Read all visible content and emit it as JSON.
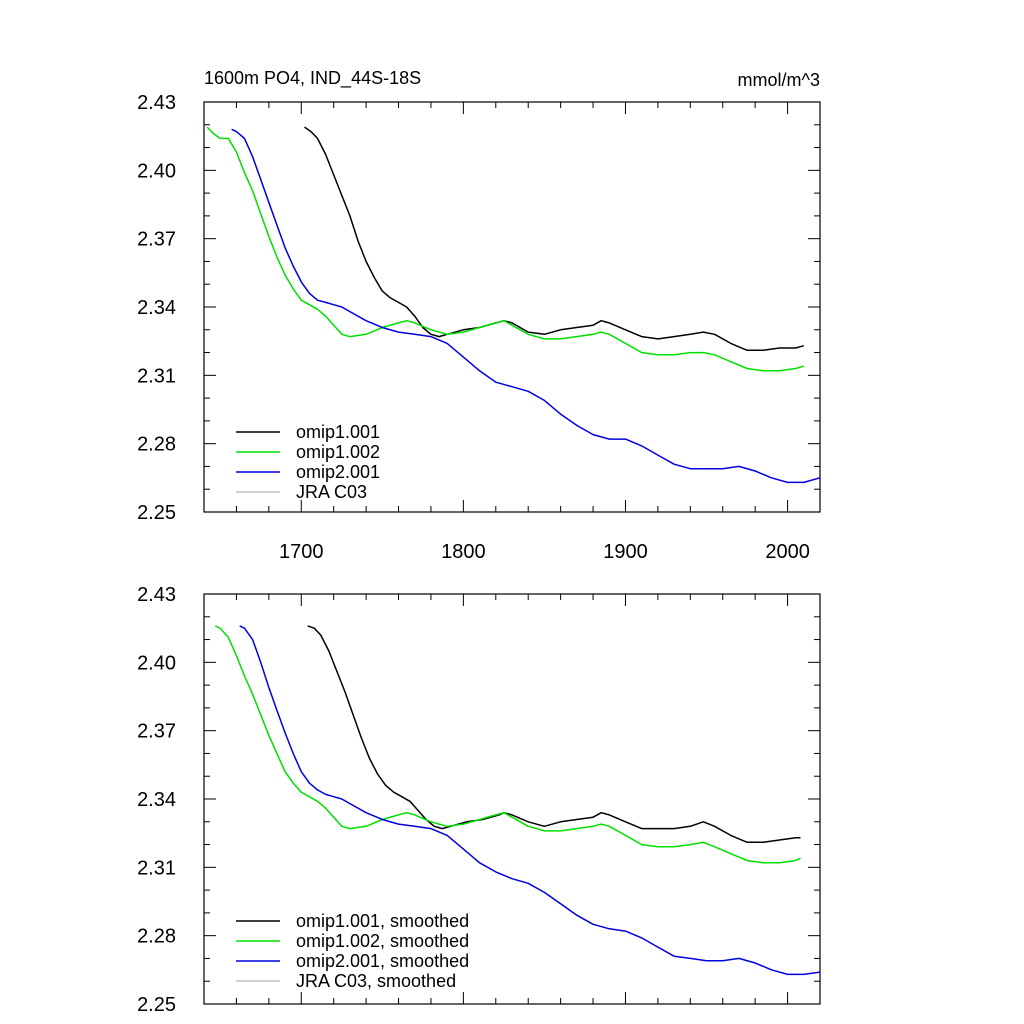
{
  "chart_data": [
    {
      "type": "line",
      "title": "1600m PO4, IND_44S-18S",
      "units": "mmol/m^3",
      "xlim": [
        1640,
        2020
      ],
      "ylim": [
        2.25,
        2.43
      ],
      "x_ticks": [
        "1700",
        "1800",
        "1900",
        "2000"
      ],
      "y_ticks": [
        "2.25",
        "2.28",
        "2.31",
        "2.34",
        "2.37",
        "2.40",
        "2.43"
      ],
      "legend_position": "bottom-left",
      "series": [
        {
          "name": "omip1.001",
          "color": "#000000",
          "x": [
            1702,
            1706,
            1710,
            1715,
            1720,
            1725,
            1730,
            1735,
            1740,
            1745,
            1750,
            1755,
            1760,
            1765,
            1770,
            1775,
            1780,
            1785,
            1790,
            1800,
            1810,
            1820,
            1825,
            1830,
            1840,
            1850,
            1860,
            1870,
            1880,
            1885,
            1890,
            1900,
            1910,
            1920,
            1930,
            1940,
            1948,
            1955,
            1965,
            1975,
            1985,
            1995,
            2005,
            2010
          ],
          "y": [
            2.419,
            2.417,
            2.414,
            2.407,
            2.398,
            2.389,
            2.38,
            2.369,
            2.36,
            2.353,
            2.347,
            2.344,
            2.342,
            2.34,
            2.336,
            2.331,
            2.328,
            2.327,
            2.328,
            2.33,
            2.331,
            2.333,
            2.334,
            2.333,
            2.329,
            2.328,
            2.33,
            2.331,
            2.332,
            2.334,
            2.333,
            2.33,
            2.327,
            2.326,
            2.327,
            2.328,
            2.329,
            2.328,
            2.324,
            2.321,
            2.321,
            2.322,
            2.322,
            2.323
          ]
        },
        {
          "name": "omip1.002",
          "color": "#00e000",
          "x": [
            1642,
            1646,
            1650,
            1655,
            1660,
            1665,
            1670,
            1675,
            1680,
            1685,
            1690,
            1695,
            1700,
            1705,
            1710,
            1715,
            1720,
            1725,
            1730,
            1740,
            1750,
            1760,
            1765,
            1770,
            1780,
            1790,
            1800,
            1810,
            1820,
            1825,
            1830,
            1840,
            1850,
            1860,
            1870,
            1880,
            1885,
            1890,
            1900,
            1910,
            1920,
            1930,
            1940,
            1948,
            1955,
            1965,
            1975,
            1985,
            1995,
            2005,
            2010
          ],
          "y": [
            2.419,
            2.416,
            2.414,
            2.414,
            2.408,
            2.399,
            2.391,
            2.381,
            2.371,
            2.362,
            2.354,
            2.348,
            2.343,
            2.341,
            2.339,
            2.336,
            2.332,
            2.328,
            2.327,
            2.328,
            2.331,
            2.333,
            2.334,
            2.333,
            2.33,
            2.328,
            2.329,
            2.331,
            2.333,
            2.334,
            2.332,
            2.328,
            2.326,
            2.326,
            2.327,
            2.328,
            2.329,
            2.328,
            2.324,
            2.32,
            2.319,
            2.319,
            2.32,
            2.32,
            2.319,
            2.316,
            2.313,
            2.312,
            2.312,
            2.313,
            2.314
          ]
        },
        {
          "name": "omip2.001",
          "color": "#0000e0",
          "x": [
            1657,
            1660,
            1665,
            1670,
            1675,
            1680,
            1685,
            1690,
            1695,
            1700,
            1705,
            1710,
            1715,
            1720,
            1725,
            1730,
            1740,
            1750,
            1760,
            1770,
            1780,
            1790,
            1800,
            1810,
            1820,
            1830,
            1840,
            1850,
            1860,
            1870,
            1880,
            1890,
            1900,
            1910,
            1920,
            1930,
            1940,
            1950,
            1960,
            1970,
            1980,
            1990,
            2000,
            2010,
            2020
          ],
          "y": [
            2.418,
            2.417,
            2.414,
            2.406,
            2.396,
            2.386,
            2.376,
            2.366,
            2.358,
            2.351,
            2.346,
            2.343,
            2.342,
            2.341,
            2.34,
            2.338,
            2.334,
            2.331,
            2.329,
            2.328,
            2.327,
            2.324,
            2.318,
            2.312,
            2.307,
            2.305,
            2.303,
            2.299,
            2.293,
            2.288,
            2.284,
            2.282,
            2.282,
            2.279,
            2.275,
            2.271,
            2.269,
            2.269,
            2.269,
            2.27,
            2.268,
            2.265,
            2.263,
            2.263,
            2.265
          ]
        },
        {
          "name": "JRA C03",
          "color": "#c0c0c0",
          "x": [],
          "y": []
        }
      ]
    },
    {
      "type": "line",
      "xlim": [
        1640,
        2020
      ],
      "ylim": [
        2.25,
        2.43
      ],
      "y_ticks": [
        "2.25",
        "2.28",
        "2.31",
        "2.34",
        "2.37",
        "2.40",
        "2.43"
      ],
      "legend_position": "bottom-left",
      "series": [
        {
          "name": "omip1.001, smoothed",
          "color": "#000000",
          "x": [
            1704,
            1708,
            1712,
            1717,
            1722,
            1727,
            1732,
            1737,
            1742,
            1747,
            1752,
            1757,
            1762,
            1767,
            1772,
            1777,
            1782,
            1787,
            1792,
            1802,
            1812,
            1822,
            1825,
            1830,
            1840,
            1850,
            1860,
            1870,
            1880,
            1885,
            1890,
            1900,
            1910,
            1920,
            1930,
            1940,
            1948,
            1955,
            1965,
            1975,
            1985,
            1995,
            2005,
            2008
          ],
          "y": [
            2.416,
            2.415,
            2.412,
            2.405,
            2.396,
            2.387,
            2.377,
            2.367,
            2.358,
            2.351,
            2.346,
            2.343,
            2.341,
            2.339,
            2.335,
            2.331,
            2.328,
            2.327,
            2.328,
            2.33,
            2.331,
            2.333,
            2.334,
            2.333,
            2.33,
            2.328,
            2.33,
            2.331,
            2.332,
            2.334,
            2.333,
            2.33,
            2.327,
            2.327,
            2.327,
            2.328,
            2.33,
            2.328,
            2.324,
            2.321,
            2.321,
            2.322,
            2.323,
            2.323
          ]
        },
        {
          "name": "omip1.002, smoothed",
          "color": "#00e000",
          "x": [
            1647,
            1650,
            1655,
            1660,
            1665,
            1670,
            1675,
            1680,
            1685,
            1690,
            1695,
            1700,
            1705,
            1710,
            1715,
            1720,
            1725,
            1730,
            1740,
            1750,
            1760,
            1765,
            1770,
            1780,
            1790,
            1800,
            1810,
            1820,
            1825,
            1830,
            1840,
            1850,
            1860,
            1870,
            1880,
            1885,
            1890,
            1900,
            1910,
            1920,
            1930,
            1940,
            1948,
            1955,
            1965,
            1975,
            1985,
            1995,
            2005,
            2008
          ],
          "y": [
            2.416,
            2.415,
            2.411,
            2.403,
            2.394,
            2.386,
            2.377,
            2.368,
            2.36,
            2.352,
            2.347,
            2.343,
            2.341,
            2.339,
            2.336,
            2.332,
            2.328,
            2.327,
            2.328,
            2.331,
            2.333,
            2.334,
            2.333,
            2.33,
            2.328,
            2.329,
            2.331,
            2.333,
            2.334,
            2.332,
            2.328,
            2.326,
            2.326,
            2.327,
            2.328,
            2.329,
            2.328,
            2.324,
            2.32,
            2.319,
            2.319,
            2.32,
            2.321,
            2.319,
            2.316,
            2.313,
            2.312,
            2.312,
            2.313,
            2.314
          ]
        },
        {
          "name": "omip2.001, smoothed",
          "color": "#0000e0",
          "x": [
            1662,
            1665,
            1670,
            1675,
            1680,
            1685,
            1690,
            1695,
            1700,
            1705,
            1710,
            1715,
            1720,
            1725,
            1730,
            1740,
            1750,
            1760,
            1770,
            1780,
            1790,
            1800,
            1810,
            1820,
            1830,
            1840,
            1850,
            1860,
            1870,
            1880,
            1890,
            1900,
            1910,
            1920,
            1930,
            1940,
            1950,
            1960,
            1970,
            1980,
            1990,
            2000,
            2010,
            2020
          ],
          "y": [
            2.416,
            2.415,
            2.41,
            2.4,
            2.389,
            2.379,
            2.369,
            2.36,
            2.352,
            2.347,
            2.344,
            2.342,
            2.341,
            2.34,
            2.338,
            2.334,
            2.331,
            2.329,
            2.328,
            2.327,
            2.324,
            2.318,
            2.312,
            2.308,
            2.305,
            2.303,
            2.299,
            2.294,
            2.289,
            2.285,
            2.283,
            2.282,
            2.279,
            2.275,
            2.271,
            2.27,
            2.269,
            2.269,
            2.27,
            2.268,
            2.265,
            2.263,
            2.263,
            2.264
          ]
        },
        {
          "name": "JRA C03, smoothed",
          "color": "#c0c0c0",
          "x": [],
          "y": []
        }
      ]
    }
  ]
}
